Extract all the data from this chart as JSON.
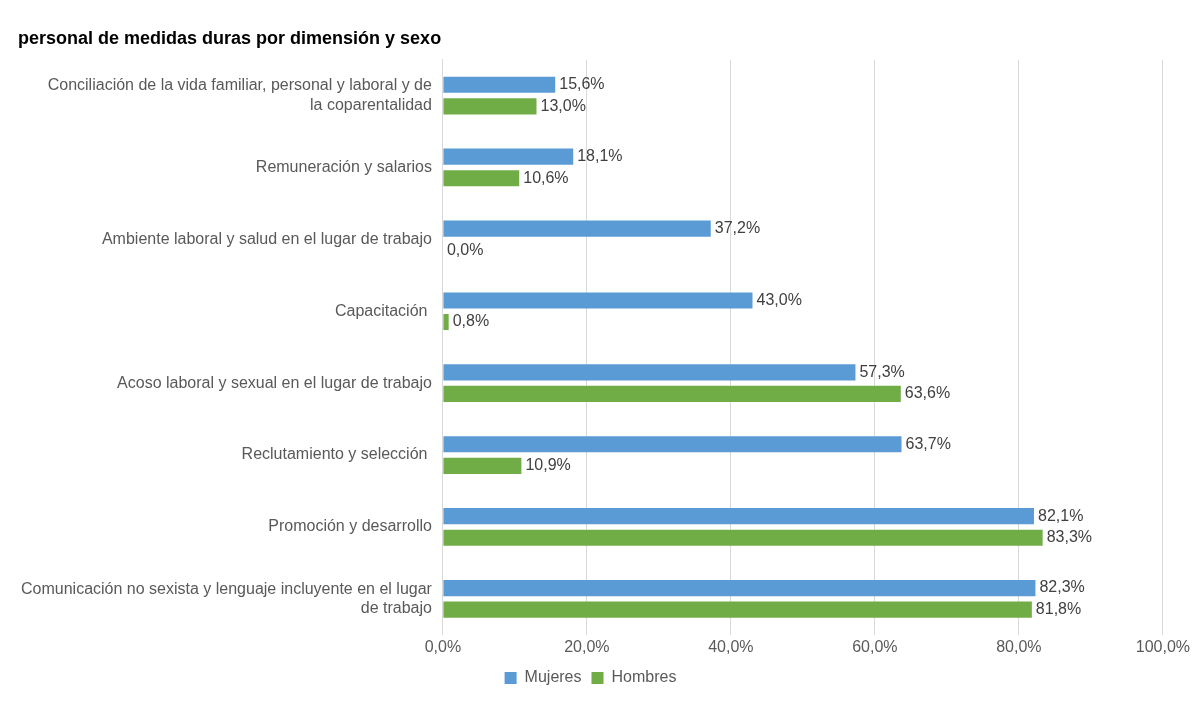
{
  "chart_data": {
    "type": "bar",
    "orientation": "horizontal",
    "title": "personal de medidas duras por dimensión y sexo",
    "categories": [
      "Conciliación de la vida familiar, personal y laboral y de la coparentalidad",
      "Remuneración y salarios",
      "Ambiente laboral y salud en el lugar de trabajo",
      "Capacitación ",
      "Acoso laboral y sexual en el lugar de trabajo",
      "Reclutamiento y selección ",
      "Promoción y desarrollo",
      "Comunicación no sexista y lenguaje incluyente en el lugar de trabajo"
    ],
    "series": [
      {
        "name": "Mujeres",
        "color": "#5b9bd5",
        "values": [
          15.6,
          18.1,
          37.2,
          43.0,
          57.3,
          63.7,
          82.1,
          82.3
        ],
        "value_labels": [
          "15,6%",
          "18,1%",
          "37,2%",
          "43,0%",
          "57,3%",
          "63,7%",
          "82,1%",
          "82,3%"
        ]
      },
      {
        "name": "Hombres",
        "color": "#70ad47",
        "values": [
          13.0,
          10.6,
          0.0,
          0.8,
          63.6,
          10.9,
          83.3,
          81.8
        ],
        "value_labels": [
          "13,0%",
          "10,6%",
          "0,0%",
          "0,8%",
          "63,6%",
          "10,9%",
          "83,3%",
          "81,8%"
        ]
      }
    ],
    "xlim": [
      0,
      100
    ],
    "xticks": [
      {
        "value": 0,
        "label": "0,0%"
      },
      {
        "value": 20,
        "label": "20,0%"
      },
      {
        "value": 40,
        "label": "40,0%"
      },
      {
        "value": 60,
        "label": "60,0%"
      },
      {
        "value": 80,
        "label": "80,0%"
      },
      {
        "value": 100,
        "label": "100,0%"
      }
    ],
    "grid": "x",
    "legend": "bottom"
  }
}
